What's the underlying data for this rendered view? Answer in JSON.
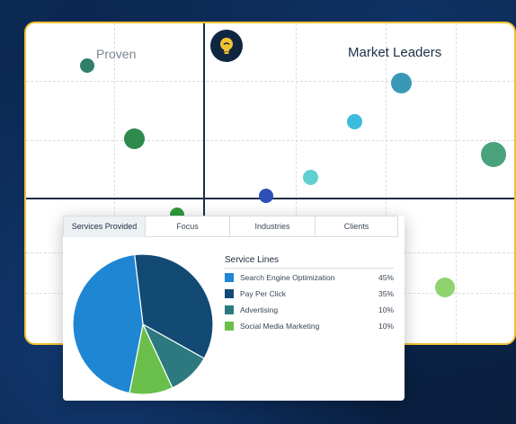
{
  "matrix": {
    "quadrants": {
      "top_left": "Proven",
      "top_right": "Market Leaders"
    },
    "logo_icon": "lightbulb-icon"
  },
  "services": {
    "tabs": [
      "Services Provided",
      "Focus",
      "Industries",
      "Clients"
    ],
    "active_tab": "Services Provided",
    "title": "Service Lines"
  },
  "chart_data": {
    "type": "pie",
    "title": "Service Lines",
    "slices": [
      {
        "label": "Search Engine Optimization",
        "value": 45,
        "display": "45%",
        "color": "#1f86d4"
      },
      {
        "label": "Pay Per Click",
        "value": 35,
        "display": "35%",
        "color": "#124a74"
      },
      {
        "label": "Advertising",
        "value": 10,
        "display": "10%",
        "color": "#2c7a7f"
      },
      {
        "label": "Social Media Marketing",
        "value": 10,
        "display": "10%",
        "color": "#6abf4b"
      }
    ]
  },
  "colors": {
    "border_accent": "#f2c230",
    "axis": "#1e2f45"
  }
}
